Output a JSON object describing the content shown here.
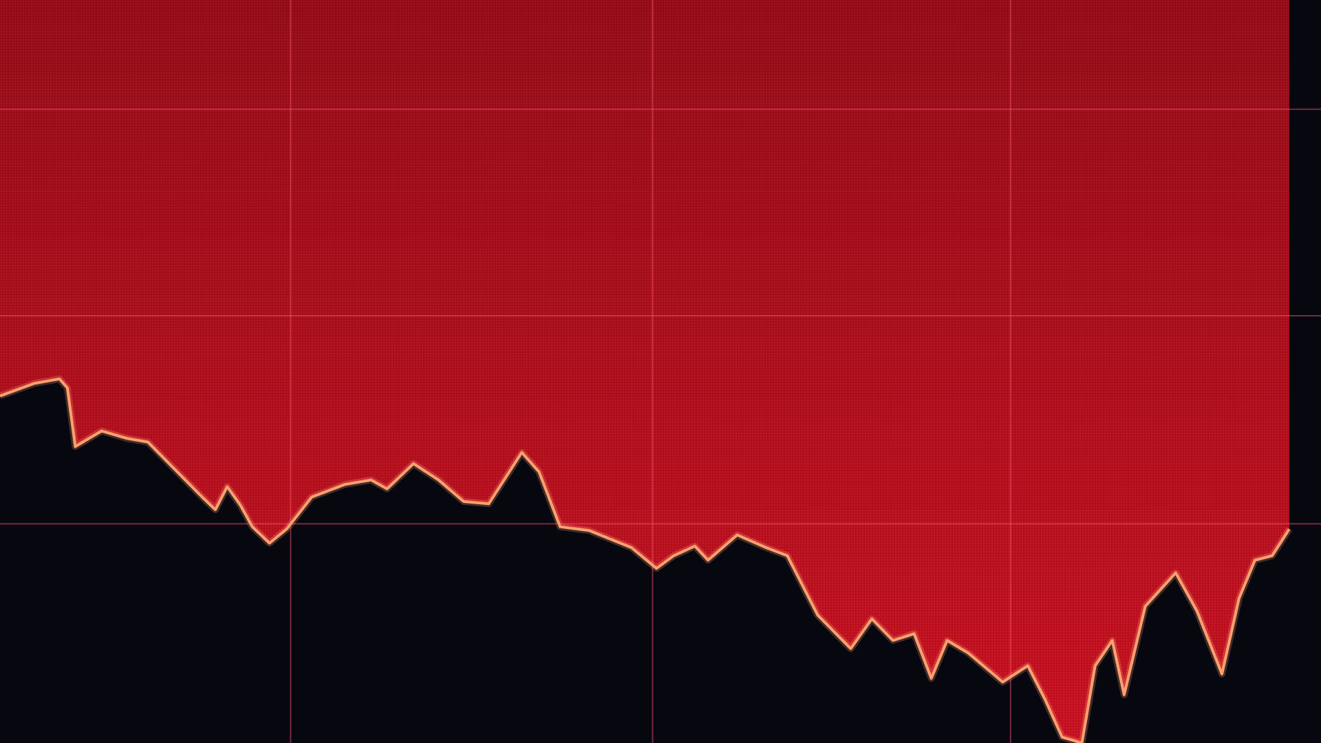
{
  "chart_data": {
    "type": "area",
    "x": [
      0,
      2.6,
      4.5,
      5.1,
      5.7,
      7.7,
      9.6,
      11.2,
      12.8,
      15.3,
      16.3,
      17.2,
      18.2,
      19.1,
      20.4,
      21.7,
      23.6,
      26.1,
      28.1,
      29.3,
      31.3,
      33.2,
      35.1,
      37.0,
      39.5,
      40.8,
      42.4,
      44.6,
      47.8,
      49.7,
      51.0,
      52.6,
      53.6,
      55.8,
      58.0,
      59.6,
      61.9,
      64.4,
      66.0,
      67.6,
      69.2,
      70.5,
      71.7,
      73.3,
      75.9,
      77.8,
      79.1,
      80.4,
      81.9,
      82.9,
      84.2,
      85.1,
      86.7,
      89.0,
      90.6,
      92.5,
      93.8,
      95.0,
      96.3,
      97.6
    ],
    "series": [
      {
        "color": "#c40f1f",
        "line_color": "#ffa070",
        "values": [
          46.7,
          48.4,
          49.0,
          47.8,
          39.9,
          42.0,
          41.0,
          40.5,
          37.6,
          33.1,
          31.4,
          34.5,
          32.0,
          29.1,
          26.9,
          28.8,
          33.1,
          34.8,
          35.4,
          34.2,
          37.6,
          35.4,
          32.5,
          32.2,
          39.1,
          36.5,
          29.1,
          28.6,
          26.3,
          23.5,
          25.2,
          26.5,
          24.6,
          28.0,
          26.3,
          25.2,
          17.2,
          12.7,
          16.7,
          13.8,
          14.7,
          8.7,
          13.8,
          12.1,
          8.2,
          10.4,
          5.9,
          0.8,
          0,
          10.4,
          13.8,
          6.5,
          18.4,
          22.9,
          17.8,
          9.3,
          19.5,
          24.6,
          25.2,
          28.8
        ]
      }
    ],
    "xlim": [
      0,
      100
    ],
    "ylim": [
      0,
      100
    ],
    "xticks": [
      22.0,
      49.4,
      76.5
    ],
    "yticks": [
      29.5,
      57.5,
      85.3
    ],
    "grid": true
  }
}
